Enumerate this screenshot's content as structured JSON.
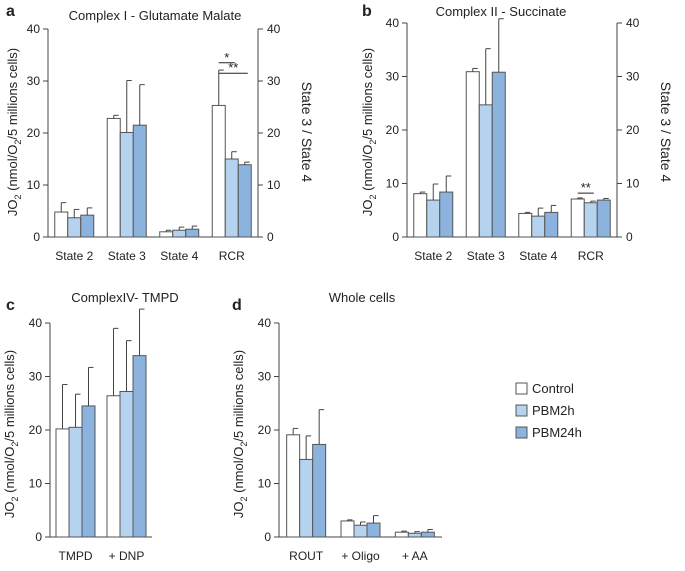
{
  "colors": {
    "control": "#ffffff",
    "pbm2h": "#b5d3ef",
    "pbm24h": "#8cb3de",
    "stroke": "#555555"
  },
  "legend": [
    {
      "label": "Control",
      "color": "#ffffff"
    },
    {
      "label": "PBM2h",
      "color": "#b5d3ef"
    },
    {
      "label": "PBM24h",
      "color": "#8cb3de"
    }
  ],
  "chart_data": [
    {
      "panel": "a",
      "type": "bar",
      "title": "Complex I  - Glutamate Malate",
      "ylabel": "JO2 (nmol/O2/5 millions cells)",
      "y2label": "State 3 / State 4",
      "ylim": [
        0,
        40
      ],
      "yticks": [
        0,
        10,
        20,
        30,
        40
      ],
      "y2ticks": [
        0,
        10,
        20,
        30,
        40
      ],
      "categories": [
        "State 2",
        "State 3",
        "State 4",
        "RCR"
      ],
      "series": [
        {
          "name": "Control",
          "values": [
            4.8,
            22.8,
            1.0,
            25.3
          ],
          "errors": [
            1.8,
            0.6,
            0.3,
            6.8
          ]
        },
        {
          "name": "PBM2h",
          "values": [
            3.7,
            20.1,
            1.3,
            15.0
          ],
          "errors": [
            1.6,
            10.0,
            0.6,
            1.4
          ]
        },
        {
          "name": "PBM24h",
          "values": [
            4.2,
            21.5,
            1.5,
            13.9
          ],
          "errors": [
            1.4,
            7.8,
            0.6,
            0.5
          ]
        }
      ],
      "significance": [
        {
          "label": "*",
          "from": 0,
          "to": 1,
          "cat": 3,
          "y": 33.5
        },
        {
          "label": "**",
          "from": 0,
          "to": 2,
          "cat": 3,
          "y": 31.5
        }
      ]
    },
    {
      "panel": "b",
      "type": "bar",
      "title": "Complex II - Succinate",
      "ylabel": "JO2 (nmol/O2/5 millions cells)",
      "y2label": "State 3 / State 4",
      "ylim": [
        0,
        40
      ],
      "yticks": [
        0,
        10,
        20,
        30,
        40
      ],
      "y2ticks": [
        0,
        10,
        20,
        30,
        40
      ],
      "categories": [
        "State 2",
        "State 3",
        "State 4",
        "RCR"
      ],
      "series": [
        {
          "name": "Control",
          "values": [
            8.1,
            30.9,
            4.4,
            7.1
          ],
          "errors": [
            0.3,
            0.6,
            0.2,
            0.2
          ]
        },
        {
          "name": "PBM2h",
          "values": [
            6.9,
            24.7,
            3.9,
            6.4
          ],
          "errors": [
            3.0,
            10.5,
            1.5,
            0.3
          ]
        },
        {
          "name": "PBM24h",
          "values": [
            8.4,
            30.8,
            4.6,
            6.9
          ],
          "errors": [
            3.0,
            10.0,
            1.3,
            0.3
          ]
        }
      ],
      "significance": [
        {
          "label": "**",
          "from": 0,
          "to": 1,
          "cat": 3,
          "y": 8.2
        }
      ]
    },
    {
      "panel": "c",
      "type": "bar",
      "title": "ComplexIV- TMPD",
      "ylabel": "JO2 (nmol/O2/5 millions cells)",
      "ylim": [
        0,
        40
      ],
      "yticks": [
        0,
        10,
        20,
        30,
        40
      ],
      "categories": [
        "TMPD",
        "+ DNP"
      ],
      "series": [
        {
          "name": "Control",
          "values": [
            20.2,
            26.4
          ],
          "errors": [
            8.3,
            12.6
          ]
        },
        {
          "name": "PBM2h",
          "values": [
            20.5,
            27.2
          ],
          "errors": [
            6.2,
            9.5
          ]
        },
        {
          "name": "PBM24h",
          "values": [
            24.5,
            33.9
          ],
          "errors": [
            7.2,
            8.7
          ]
        }
      ],
      "significance": []
    },
    {
      "panel": "d",
      "type": "bar",
      "title": "Whole cells",
      "ylabel": "JO2 (nmol/O2/5 millions cells)",
      "ylim": [
        0,
        40
      ],
      "yticks": [
        0,
        10,
        20,
        30,
        40
      ],
      "categories": [
        "ROUT",
        "+ Oligo",
        "+ AA"
      ],
      "series": [
        {
          "name": "Control",
          "values": [
            19.1,
            3.0,
            0.9
          ],
          "errors": [
            1.2,
            0.2,
            0.2
          ]
        },
        {
          "name": "PBM2h",
          "values": [
            14.5,
            2.2,
            0.7
          ],
          "errors": [
            4.4,
            0.6,
            0.3
          ]
        },
        {
          "name": "PBM24h",
          "values": [
            17.3,
            2.6,
            0.9
          ],
          "errors": [
            6.5,
            1.4,
            0.5
          ]
        }
      ],
      "significance": []
    }
  ]
}
